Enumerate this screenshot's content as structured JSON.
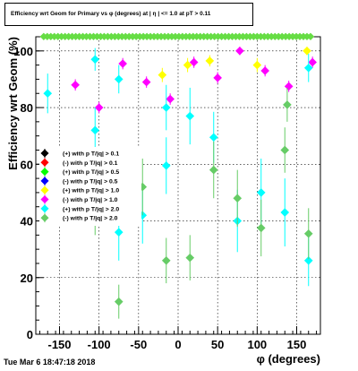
{
  "title": "Efficiency wrt Geom for Primary vs φ (degrees) at | η | <= 1.0 at pT > 0.11",
  "timestamp": "Tue Mar  6 18:47:18 2018",
  "chart_data": {
    "type": "scatter",
    "xlabel": "φ (degrees)",
    "ylabel": "Efficiency wrt Geom (%)",
    "xlim": [
      -180,
      180
    ],
    "ylim": [
      0,
      105
    ],
    "x_ticks": [
      -150,
      -100,
      -50,
      0,
      50,
      100,
      150
    ],
    "y_ticks": [
      0,
      20,
      40,
      60,
      80,
      100
    ],
    "grid": true,
    "legend_position": "left-middle",
    "series": [
      {
        "name": "(+) with p T/|q| > 0.1",
        "color": "#000000",
        "points": []
      },
      {
        "name": "(-) with p T/|q| > 0.1",
        "color": "#ff0000",
        "points": []
      },
      {
        "name": "(+) with p T/|q| > 0.5",
        "color": "#00ff00",
        "points": []
      },
      {
        "name": "(-) with p T/|q| > 0.5",
        "color": "#0000ff",
        "points": []
      },
      {
        "name": "(+) with p T/|q| > 1.0",
        "color": "#ffff00",
        "points": [
          [
            -20,
            91.5,
            2.5
          ],
          [
            12,
            95,
            2.5
          ],
          [
            40,
            96.5,
            2
          ],
          [
            100,
            95,
            2.5
          ],
          [
            163,
            100,
            1.5
          ]
        ]
      },
      {
        "name": "(-) with p T/|q| > 1.0",
        "color": "#ff00ff",
        "points": [
          [
            -130,
            88,
            2
          ],
          [
            -100,
            80,
            2
          ],
          [
            -70,
            95.5,
            2
          ],
          [
            -40,
            89,
            2
          ],
          [
            -10,
            83,
            2
          ],
          [
            20,
            96,
            2
          ],
          [
            50,
            90.5,
            2
          ],
          [
            78,
            100,
            1.5
          ],
          [
            110,
            93,
            2
          ],
          [
            140,
            87.5,
            2
          ],
          [
            170,
            96,
            2
          ]
        ]
      },
      {
        "name": "(+) with p T/|q| > 2.0",
        "color": "#00ffff",
        "points": [
          [
            -165,
            85,
            7
          ],
          [
            -105,
            97,
            4
          ],
          [
            -105,
            72,
            8
          ],
          [
            -75,
            90,
            5
          ],
          [
            -75,
            36,
            10
          ],
          [
            -45,
            42,
            10
          ],
          [
            -15,
            80,
            8
          ],
          [
            -15,
            59.5,
            10
          ],
          [
            15,
            77,
            10
          ],
          [
            45,
            69.5,
            9
          ],
          [
            75,
            40,
            11
          ],
          [
            105,
            50,
            12
          ],
          [
            135,
            43,
            12
          ],
          [
            165,
            94,
            5
          ],
          [
            165,
            26,
            9
          ]
        ]
      },
      {
        "name": "(-) with p T/|q| > 2.0",
        "color": "#66cc66",
        "points": [
          [
            -135,
            55,
            8
          ],
          [
            -105,
            45,
            10
          ],
          [
            -75,
            11.5,
            6
          ],
          [
            -45,
            52,
            10
          ],
          [
            -15,
            26,
            8
          ],
          [
            15,
            27,
            8
          ],
          [
            45,
            58,
            10
          ],
          [
            75,
            48,
            10
          ],
          [
            105,
            37.5,
            10
          ],
          [
            135,
            65,
            8
          ],
          [
            138,
            81,
            6
          ],
          [
            165,
            35.5,
            9
          ]
        ]
      }
    ],
    "saturation_band": {
      "color": "#66dd44",
      "y": 100
    }
  }
}
